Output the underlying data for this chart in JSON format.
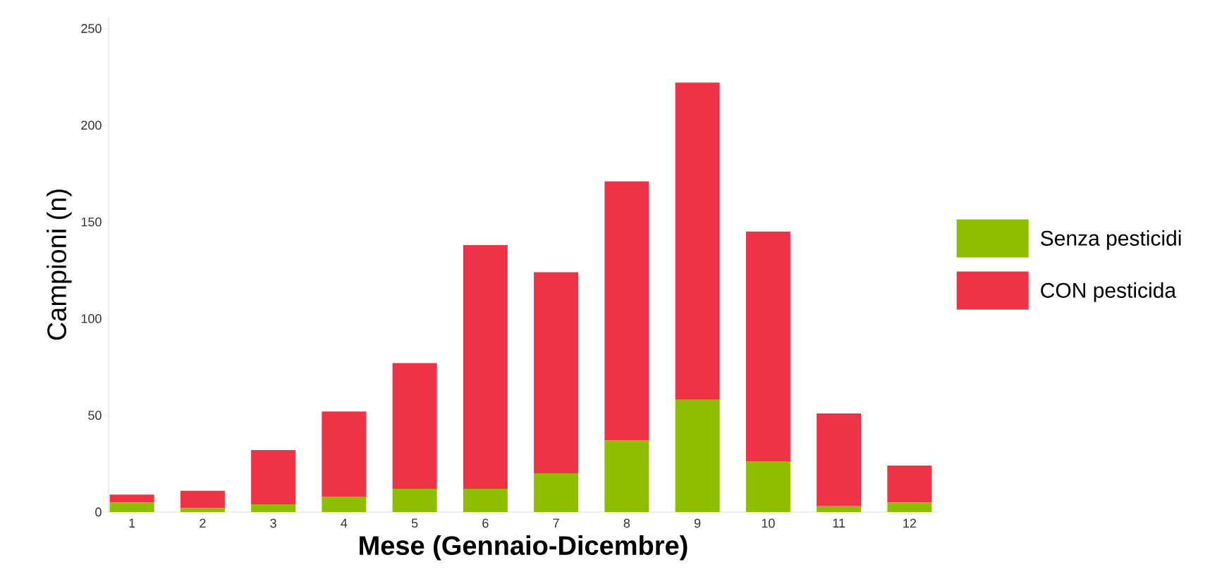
{
  "chart_data": {
    "type": "bar",
    "stacked": true,
    "xlabel": "Mese (Gennaio-Dicembre)",
    "ylabel": "Campioni (n)",
    "categories": [
      "1",
      "2",
      "3",
      "4",
      "5",
      "6",
      "7",
      "8",
      "9",
      "10",
      "11",
      "12"
    ],
    "series": [
      {
        "name": "Senza pesticidi",
        "color": "#8fbe00",
        "values": [
          5,
          2,
          4,
          8,
          12,
          12,
          20,
          37,
          58,
          26,
          3,
          5
        ]
      },
      {
        "name": "CON pesticida",
        "color": "#ef3346",
        "values": [
          4,
          9,
          28,
          44,
          65,
          126,
          104,
          134,
          164,
          119,
          48,
          19
        ]
      }
    ],
    "ylim": [
      0,
      256
    ],
    "yticks": [
      0,
      50,
      100,
      150,
      200,
      250
    ],
    "grid": false,
    "legend": "right"
  }
}
